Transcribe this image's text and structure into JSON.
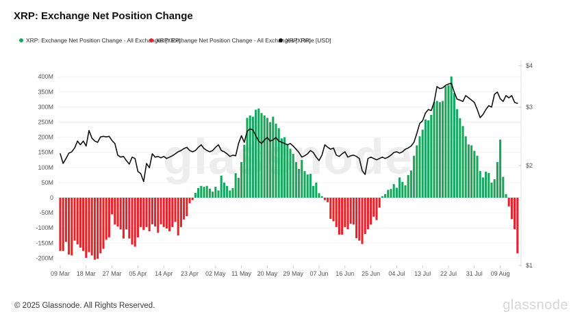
{
  "header": {
    "title": "XRP: Exchange Net Position Change"
  },
  "legend": [
    {
      "label": "XRP: Exchange Net Position Change - All Exchanges [XRP]",
      "color": "#17a75c"
    },
    {
      "label": "XRP: Exchange Net Position Change - All Exchanges [XRP]",
      "color": "#e6222a"
    },
    {
      "label": "XRP: Price [USD]",
      "color": "#111111"
    }
  ],
  "watermark": {
    "text": "glassnode"
  },
  "footer": {
    "copyright": "© 2025 Glassnode. All Rights Reserved.",
    "logo": "glassnode"
  },
  "chart_data": {
    "type": "bar+line",
    "title": "XRP: Exchange Net Position Change",
    "bar_series": "XRP: Exchange Net Position Change - All Exchanges [XRP]",
    "line_series": "XRP: Price [USD]",
    "bar_unit": "XRP, millions",
    "grid": "horizontal",
    "left_axis_ticks": [
      "400M",
      "350M",
      "300M",
      "250M",
      "200M",
      "150M",
      "100M",
      "50M",
      "0",
      "-50M",
      "-100M",
      "-150M",
      "-200M"
    ],
    "right_axis_ticks": [
      "$4",
      "$3",
      "$2",
      "$1"
    ],
    "right_axis_scale": "log",
    "x_axis_ticks": [
      "09 Mar",
      "18 Mar",
      "27 Mar",
      "05 Apr",
      "14 Apr",
      "23 Apr",
      "02 May",
      "11 May",
      "20 May",
      "29 May",
      "07 Jun",
      "16 Jun",
      "25 Jun",
      "04 Jul",
      "13 Jul",
      "22 Jul",
      "31 Jul",
      "09 Aug"
    ],
    "x_tick_step_days": 9,
    "colors": {
      "positive": "#17a75c",
      "negative": "#e6222a",
      "price": "#111111",
      "grid": "#f2f2f2",
      "zero_line": "#e2e2e2",
      "axis_text": "#555555"
    },
    "columns": [
      "date",
      "net_position_change_millions",
      "price_usd"
    ],
    "rows": [
      [
        "09 Mar",
        -176,
        2.17
      ],
      [
        "10 Mar",
        -176,
        2.03
      ],
      [
        "11 Mar",
        -146,
        2.1
      ],
      [
        "12 Mar",
        -188,
        2.18
      ],
      [
        "13 Mar",
        -191,
        2.2
      ],
      [
        "14 Mar",
        -142,
        2.26
      ],
      [
        "15 Mar",
        -154,
        2.37
      ],
      [
        "16 Mar",
        -165,
        2.31
      ],
      [
        "17 Mar",
        -176,
        2.37
      ],
      [
        "18 Mar",
        -199,
        2.29
      ],
      [
        "19 Mar",
        -180,
        2.55
      ],
      [
        "20 Mar",
        -191,
        2.42
      ],
      [
        "21 Mar",
        -205,
        2.37
      ],
      [
        "22 Mar",
        -202,
        2.35
      ],
      [
        "23 Mar",
        -184,
        2.44
      ],
      [
        "24 Mar",
        -169,
        2.45
      ],
      [
        "25 Mar",
        -139,
        2.44
      ],
      [
        "26 Mar",
        -131,
        2.45
      ],
      [
        "27 Mar",
        -55,
        2.38
      ],
      [
        "28 Mar",
        -89,
        2.33
      ],
      [
        "29 Mar",
        -95,
        2.15
      ],
      [
        "30 Mar",
        -105,
        2.12
      ],
      [
        "31 Mar",
        -135,
        2.13
      ],
      [
        "01 Apr",
        -105,
        2.07
      ],
      [
        "02 Apr",
        -135,
        2.02
      ],
      [
        "03 Apr",
        -155,
        2.12
      ],
      [
        "04 Apr",
        -162,
        2.1
      ],
      [
        "05 Apr",
        -131,
        1.92
      ],
      [
        "06 Apr",
        -97,
        1.89
      ],
      [
        "07 Apr",
        -107,
        1.79
      ],
      [
        "08 Apr",
        -97,
        2.03
      ],
      [
        "09 Apr",
        -111,
        1.97
      ],
      [
        "10 Apr",
        -88,
        2.17
      ],
      [
        "11 Apr",
        -95,
        2.12
      ],
      [
        "12 Apr",
        -116,
        2.13
      ],
      [
        "13 Apr",
        -88,
        2.11
      ],
      [
        "14 Apr",
        -97,
        2.13
      ],
      [
        "15 Apr",
        -102,
        2.1
      ],
      [
        "16 Apr",
        -111,
        2.12
      ],
      [
        "17 Apr",
        -97,
        2.14
      ],
      [
        "18 Apr",
        -80,
        2.17
      ],
      [
        "19 Apr",
        -125,
        2.2
      ],
      [
        "20 Apr",
        -97,
        2.22
      ],
      [
        "21 Apr",
        -72,
        2.25
      ],
      [
        "22 Apr",
        -61,
        2.27
      ],
      [
        "23 Apr",
        -18,
        2.22
      ],
      [
        "24 Apr",
        -8,
        2.2
      ],
      [
        "25 Apr",
        16,
        2.22
      ],
      [
        "26 Apr",
        32,
        2.27
      ],
      [
        "27 Apr",
        39,
        2.31
      ],
      [
        "28 Apr",
        36,
        2.25
      ],
      [
        "29 Apr",
        39,
        2.22
      ],
      [
        "30 Apr",
        30,
        2.2
      ],
      [
        "01 May",
        20,
        2.22
      ],
      [
        "02 May",
        36,
        2.27
      ],
      [
        "03 May",
        24,
        2.31
      ],
      [
        "04 May",
        73,
        2.22
      ],
      [
        "05 May",
        50,
        2.2
      ],
      [
        "06 May",
        39,
        2.17
      ],
      [
        "07 May",
        24,
        2.13
      ],
      [
        "08 May",
        32,
        2.15
      ],
      [
        "09 May",
        81,
        2.14
      ],
      [
        "10 May",
        66,
        2.33
      ],
      [
        "11 May",
        118,
        2.46
      ],
      [
        "12 May",
        175,
        2.35
      ],
      [
        "13 May",
        264,
        2.54
      ],
      [
        "14 May",
        272,
        2.58
      ],
      [
        "15 May",
        268,
        2.56
      ],
      [
        "16 May",
        291,
        2.46
      ],
      [
        "17 May",
        295,
        2.37
      ],
      [
        "18 May",
        280,
        2.33
      ],
      [
        "19 May",
        272,
        2.39
      ],
      [
        "20 May",
        264,
        2.43
      ],
      [
        "21 May",
        250,
        2.37
      ],
      [
        "22 May",
        268,
        2.39
      ],
      [
        "23 May",
        245,
        2.43
      ],
      [
        "24 May",
        230,
        2.37
      ],
      [
        "25 May",
        196,
        2.35
      ],
      [
        "26 May",
        200,
        2.33
      ],
      [
        "27 May",
        177,
        2.31
      ],
      [
        "28 May",
        162,
        2.33
      ],
      [
        "29 May",
        145,
        2.29
      ],
      [
        "30 May",
        118,
        2.24
      ],
      [
        "31 May",
        95,
        2.19
      ],
      [
        "01 Jun",
        125,
        2.12
      ],
      [
        "02 Jun",
        88,
        2.14
      ],
      [
        "03 Jun",
        77,
        2.17
      ],
      [
        "04 Jun",
        79,
        2.22
      ],
      [
        "05 Jun",
        39,
        2.19
      ],
      [
        "06 Jun",
        50,
        2.12
      ],
      [
        "07 Jun",
        15,
        2.07
      ],
      [
        "08 Jun",
        5,
        2.15
      ],
      [
        "09 Jun",
        -8,
        2.31
      ],
      [
        "10 Jun",
        -15,
        2.27
      ],
      [
        "11 Jun",
        -70,
        2.24
      ],
      [
        "12 Jun",
        -78,
        2.26
      ],
      [
        "13 Jun",
        -97,
        2.15
      ],
      [
        "14 Jun",
        -122,
        2.13
      ],
      [
        "15 Jun",
        -122,
        2.17
      ],
      [
        "16 Jun",
        -97,
        2.2
      ],
      [
        "17 Jun",
        -104,
        2.12
      ],
      [
        "18 Jun",
        -86,
        2.14
      ],
      [
        "19 Jun",
        -89,
        2.15
      ],
      [
        "20 Jun",
        -134,
        2.13
      ],
      [
        "21 Jun",
        -142,
        2.1
      ],
      [
        "22 Jun",
        -153,
        1.93
      ],
      [
        "23 Jun",
        -120,
        1.88
      ],
      [
        "24 Jun",
        -104,
        2.1
      ],
      [
        "25 Jun",
        -89,
        2.12
      ],
      [
        "26 Jun",
        -63,
        2.1
      ],
      [
        "27 Jun",
        -74,
        2.08
      ],
      [
        "28 Jun",
        -33,
        2.1
      ],
      [
        "29 Jun",
        5,
        2.12
      ],
      [
        "30 Jun",
        12,
        2.1
      ],
      [
        "01 Jul",
        26,
        2.12
      ],
      [
        "02 Jul",
        29,
        2.15
      ],
      [
        "03 Jul",
        45,
        2.19
      ],
      [
        "04 Jul",
        33,
        2.2
      ],
      [
        "05 Jul",
        67,
        2.18
      ],
      [
        "06 Jul",
        52,
        2.2
      ],
      [
        "07 Jul",
        41,
        2.24
      ],
      [
        "08 Jul",
        75,
        2.26
      ],
      [
        "09 Jul",
        90,
        2.29
      ],
      [
        "10 Jul",
        139,
        2.35
      ],
      [
        "11 Jul",
        173,
        2.5
      ],
      [
        "12 Jul",
        203,
        2.68
      ],
      [
        "13 Jul",
        225,
        2.73
      ],
      [
        "14 Jul",
        259,
        2.88
      ],
      [
        "15 Jul",
        256,
        2.95
      ],
      [
        "16 Jul",
        274,
        2.93
      ],
      [
        "17 Jul",
        316,
        3.1
      ],
      [
        "18 Jul",
        320,
        3.46
      ],
      [
        "19 Jul",
        316,
        3.41
      ],
      [
        "20 Jul",
        320,
        3.43
      ],
      [
        "21 Jul",
        369,
        3.49
      ],
      [
        "22 Jul",
        372,
        3.52
      ],
      [
        "23 Jul",
        401,
        3.54
      ],
      [
        "24 Jul",
        346,
        3.33
      ],
      [
        "25 Jul",
        293,
        3.17
      ],
      [
        "26 Jul",
        263,
        3.15
      ],
      [
        "27 Jul",
        237,
        3.12
      ],
      [
        "28 Jul",
        203,
        3.25
      ],
      [
        "29 Jul",
        176,
        3.2
      ],
      [
        "30 Jul",
        173,
        3.15
      ],
      [
        "31 Jul",
        155,
        3.1
      ],
      [
        "01 Aug",
        139,
        2.95
      ],
      [
        "02 Aug",
        88,
        2.79
      ],
      [
        "03 Aug",
        67,
        2.85
      ],
      [
        "04 Aug",
        86,
        2.95
      ],
      [
        "05 Aug",
        82,
        3.03
      ],
      [
        "06 Aug",
        50,
        3.0
      ],
      [
        "07 Aug",
        61,
        3.28
      ],
      [
        "08 Aug",
        118,
        3.33
      ],
      [
        "09 Aug",
        192,
        3.18
      ],
      [
        "10 Aug",
        69,
        3.12
      ],
      [
        "11 Aug",
        12,
        3.25
      ],
      [
        "12 Aug",
        -29,
        3.2
      ],
      [
        "13 Aug",
        -71,
        3.25
      ],
      [
        "14 Aug",
        -104,
        3.1
      ],
      [
        "15 Aug",
        -184,
        3.08
      ]
    ],
    "left_axis_range_millions": [
      -200,
      400
    ],
    "right_axis_range_usd": [
      1,
      4
    ],
    "legend_position": "top-left"
  }
}
